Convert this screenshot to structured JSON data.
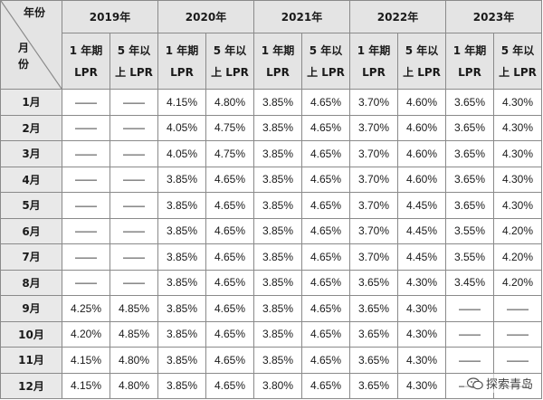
{
  "corner": {
    "top_label": "年份",
    "side_label": "月份"
  },
  "years": [
    "2019年",
    "2020年",
    "2021年",
    "2022年",
    "2023年"
  ],
  "sub_headers": {
    "one_year": [
      "1 年期",
      "LPR"
    ],
    "five_year": [
      "5 年以",
      "上 LPR"
    ]
  },
  "rows": [
    {
      "month": "1月",
      "values": [
        "——",
        "——",
        "4.15%",
        "4.80%",
        "3.85%",
        "4.65%",
        "3.70%",
        "4.60%",
        "3.65%",
        "4.30%"
      ]
    },
    {
      "month": "2月",
      "values": [
        "——",
        "——",
        "4.05%",
        "4.75%",
        "3.85%",
        "4.65%",
        "3.70%",
        "4.60%",
        "3.65%",
        "4.30%"
      ]
    },
    {
      "month": "3月",
      "values": [
        "——",
        "——",
        "4.05%",
        "4.75%",
        "3.85%",
        "4.65%",
        "3.70%",
        "4.60%",
        "3.65%",
        "4.30%"
      ]
    },
    {
      "month": "4月",
      "values": [
        "——",
        "——",
        "3.85%",
        "4.65%",
        "3.85%",
        "4.65%",
        "3.70%",
        "4.60%",
        "3.65%",
        "4.30%"
      ]
    },
    {
      "month": "5月",
      "values": [
        "——",
        "——",
        "3.85%",
        "4.65%",
        "3.85%",
        "4.65%",
        "3.70%",
        "4.45%",
        "3.65%",
        "4.30%"
      ]
    },
    {
      "month": "6月",
      "values": [
        "——",
        "——",
        "3.85%",
        "4.65%",
        "3.85%",
        "4.65%",
        "3.70%",
        "4.45%",
        "3.55%",
        "4.20%"
      ]
    },
    {
      "month": "7月",
      "values": [
        "——",
        "——",
        "3.85%",
        "4.65%",
        "3.85%",
        "4.65%",
        "3.70%",
        "4.45%",
        "3.55%",
        "4.20%"
      ]
    },
    {
      "month": "8月",
      "values": [
        "——",
        "——",
        "3.85%",
        "4.65%",
        "3.85%",
        "4.65%",
        "3.65%",
        "4.30%",
        "3.45%",
        "4.20%"
      ]
    },
    {
      "month": "9月",
      "values": [
        "4.25%",
        "4.85%",
        "3.85%",
        "4.65%",
        "3.85%",
        "4.65%",
        "3.65%",
        "4.30%",
        "——",
        "——"
      ]
    },
    {
      "month": "10月",
      "values": [
        "4.20%",
        "4.85%",
        "3.85%",
        "4.65%",
        "3.85%",
        "4.65%",
        "3.65%",
        "4.30%",
        "——",
        "——"
      ]
    },
    {
      "month": "11月",
      "values": [
        "4.15%",
        "4.80%",
        "3.85%",
        "4.65%",
        "3.85%",
        "4.65%",
        "3.65%",
        "4.30%",
        "——",
        "——"
      ]
    },
    {
      "month": "12月",
      "values": [
        "4.15%",
        "4.80%",
        "3.85%",
        "4.65%",
        "3.80%",
        "4.65%",
        "3.65%",
        "4.30%",
        "——",
        "——"
      ]
    }
  ],
  "watermark": {
    "text": "探索青岛",
    "icon": "wechat-icon"
  }
}
